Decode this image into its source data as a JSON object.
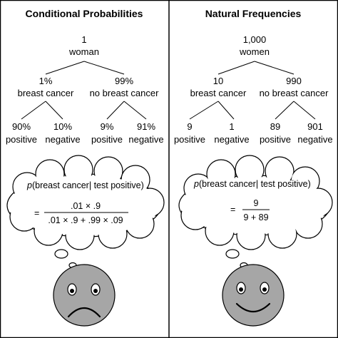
{
  "panels": [
    {
      "title": "Conditional Probabilities",
      "root": {
        "value": "1",
        "label": "woman"
      },
      "level1": [
        {
          "value": "1%",
          "label": "breast cancer"
        },
        {
          "value": "99%",
          "label": "no breast cancer"
        }
      ],
      "level2": [
        {
          "value": "90%",
          "label": "positive"
        },
        {
          "value": "10%",
          "label": "negative"
        },
        {
          "value": "9%",
          "label": "positive"
        },
        {
          "value": "91%",
          "label": "negative"
        }
      ],
      "formula": {
        "p": "p",
        "expression": "(breast cancer| test positive)",
        "equals": "=",
        "numerator": ".01 × .9",
        "denominator": ".01 × .9 + .99 × .09"
      },
      "face": "sad"
    },
    {
      "title": "Natural Frequencies",
      "root": {
        "value": "1,000",
        "label": "women"
      },
      "level1": [
        {
          "value": "10",
          "label": "breast cancer"
        },
        {
          "value": "990",
          "label": "no breast cancer"
        }
      ],
      "level2": [
        {
          "value": "9",
          "label": "positive"
        },
        {
          "value": "1",
          "label": "negative"
        },
        {
          "value": "89",
          "label": "positive"
        },
        {
          "value": "901",
          "label": "negative"
        }
      ],
      "formula": {
        "p": "p",
        "expression": "(breast cancer| test positive)",
        "equals": "=",
        "numerator": "9",
        "denominator": "9 + 89"
      },
      "face": "happy"
    }
  ],
  "colors": {
    "border": "#000000",
    "face_fill": "#a6a6a6",
    "cloud_fill": "#ffffff"
  }
}
